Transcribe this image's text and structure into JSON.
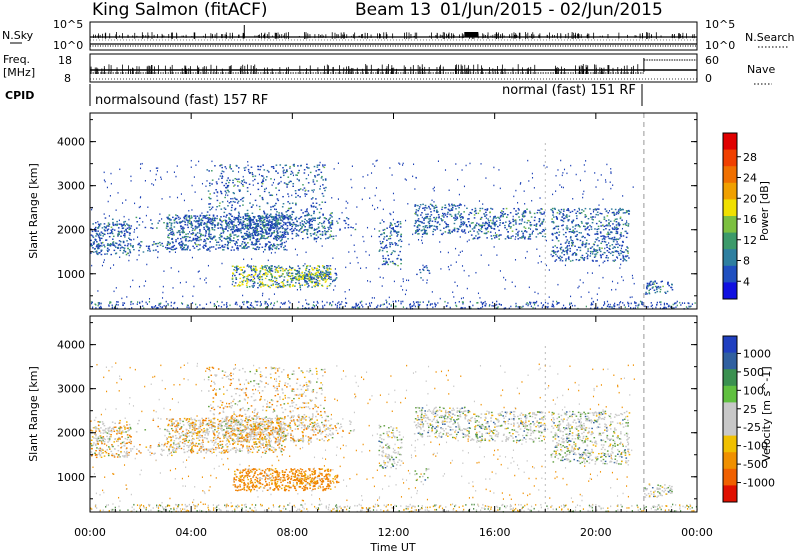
{
  "header": {
    "station": "King Salmon (fitACF)",
    "beam": "Beam 13",
    "date_range": "01/Jun/2015 - 02/Jun/2015"
  },
  "top_strips": {
    "nsky_label": "N.Sky",
    "nsearch_label": "N.Search",
    "nsky_ticks": [
      "10^5",
      "10^0"
    ],
    "nsearch_ticks": [
      "10^5",
      "10^0"
    ],
    "freq_label_1": "Freq.",
    "freq_label_2": "[MHz]",
    "freq_ticks": [
      "18",
      "8"
    ],
    "nave_label": "Nave",
    "nave_ticks": [
      "60",
      "0"
    ],
    "cpid_label": "CPID",
    "cpid_segments": [
      {
        "label": "normalsound (fast) 157 RF",
        "start_hour": 0,
        "end_hour": 21.9
      },
      {
        "label": "normal (fast) 151 RF",
        "start_hour": 21.9,
        "end_hour": 24
      }
    ]
  },
  "chart_data": [
    {
      "type": "heatmap",
      "name": "power",
      "ylabel": "Slant Range [km]",
      "y_ticks": [
        1000,
        2000,
        3000,
        4000
      ],
      "ylim": [
        200,
        4650
      ],
      "colorbar_label": "Power [dB]",
      "colorbar_ticks": [
        "4",
        "8",
        "12",
        "16",
        "20",
        "24",
        "28"
      ],
      "colorbar_colors": [
        "#1010e0",
        "#2050c0",
        "#2e7fa0",
        "#3c9a6a",
        "#7cc040",
        "#f0e000",
        "#f0a000",
        "#f07000",
        "#f04000",
        "#e00000"
      ],
      "dominant_colors": [
        "#1a3fb5",
        "#2d7a9a",
        "#3f9b64"
      ]
    },
    {
      "type": "heatmap",
      "name": "velocity",
      "ylabel": "Slant Range [km]",
      "y_ticks": [
        1000,
        2000,
        3000,
        4000
      ],
      "ylim": [
        200,
        4650
      ],
      "colorbar_label": "Velocity [m s^-1]",
      "colorbar_ticks": [
        "1000",
        "500",
        "100",
        "25",
        "-25",
        "-100",
        "-500",
        "-1000"
      ],
      "colorbar_colors": [
        "#2040c0",
        "#3060a0",
        "#3a9050",
        "#60c040",
        "#c8c8c8",
        "#c8c8c8",
        "#f0c000",
        "#f09000",
        "#f06000",
        "#e01000"
      ],
      "dominant_colors": [
        "#c8c8c8",
        "#f08000",
        "#60a040"
      ]
    }
  ],
  "x_axis": {
    "tick_labels": [
      "00:00",
      "04:00",
      "08:00",
      "12:00",
      "16:00",
      "20:00",
      "00:00"
    ],
    "xlabel": "Time UT",
    "xlim_hours": [
      0,
      24
    ]
  },
  "features": {
    "mode_change_hour": 21.9,
    "dashed_marker_hour": 18.0
  }
}
